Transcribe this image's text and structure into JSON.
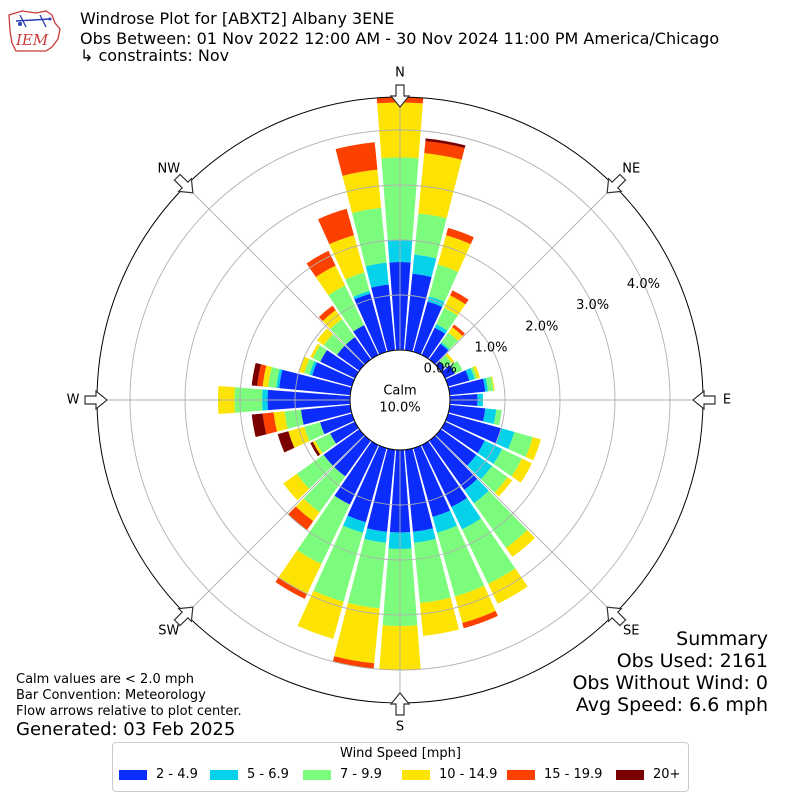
{
  "header": {
    "title": "Windrose Plot for [ABXT2] Albany 3ENE",
    "obs_between": "Obs Between: 01 Nov 2022 12:00 AM - 30 Nov 2024 11:00 PM America/Chicago",
    "constraints": "↳ constraints: Nov",
    "logo_text": "IEM"
  },
  "notes": {
    "calm_note": "Calm values are < 2.0 mph",
    "bar_convention": "Bar Convention: Meteorology",
    "flow_arrows": "Flow arrows relative to plot center.",
    "generated": "Generated: 03 Feb 2025"
  },
  "summary": {
    "heading": "Summary",
    "obs_used": "Obs Used: 2161",
    "obs_without_wind": "Obs Without Wind: 0",
    "avg_speed": "Avg Speed: 6.6 mph"
  },
  "legend": {
    "title": "Wind Speed [mph]",
    "items": [
      {
        "label": "2 - 4.9",
        "color": "#0c2cfc"
      },
      {
        "label": "5 - 6.9",
        "color": "#05d2ea"
      },
      {
        "label": "7 - 9.9",
        "color": "#7cfc7c"
      },
      {
        "label": "10 - 14.9",
        "color": "#fce303"
      },
      {
        "label": "15 - 19.9",
        "color": "#fc4000"
      },
      {
        "label": "20+",
        "color": "#7a0000"
      }
    ]
  },
  "chart_data": {
    "type": "windrose",
    "calm": {
      "label": "Calm",
      "value": "10.0%"
    },
    "radial_ticks": [
      "0.0%",
      "1.0%",
      "2.0%",
      "3.0%",
      "4.0%"
    ],
    "radial_tick_values": [
      0,
      1,
      2,
      3,
      4
    ],
    "rmax": 4.6,
    "compass_labels": [
      "N",
      "NE",
      "E",
      "SE",
      "S",
      "SW",
      "W",
      "NW"
    ],
    "compass_angles": [
      0,
      45,
      90,
      135,
      180,
      225,
      270,
      315
    ],
    "speed_bins": [
      "2 - 4.9",
      "5 - 6.9",
      "7 - 9.9",
      "10 - 14.9",
      "15 - 19.9",
      "20+"
    ],
    "directions": [
      0,
      10,
      20,
      30,
      40,
      50,
      60,
      70,
      80,
      90,
      100,
      110,
      120,
      130,
      140,
      150,
      160,
      170,
      180,
      190,
      200,
      210,
      220,
      230,
      240,
      250,
      260,
      270,
      280,
      290,
      300,
      310,
      320,
      330,
      340,
      350
    ],
    "cumulative_percent": [
      [
        1.6,
        2.0,
        3.5,
        4.5,
        4.6,
        4.6
      ],
      [
        1.4,
        1.75,
        2.5,
        3.6,
        3.82,
        3.87
      ],
      [
        0.95,
        1.05,
        1.65,
        2.2,
        2.34,
        2.34
      ],
      [
        0.55,
        0.62,
        0.95,
        1.2,
        1.3,
        1.3
      ],
      [
        0.35,
        0.38,
        0.6,
        0.72,
        0.78,
        0.78
      ],
      [
        0.1,
        0.1,
        0.25,
        0.3,
        0.3,
        0.3
      ],
      [
        0.2,
        0.2,
        0.35,
        0.35,
        0.35,
        0.35
      ],
      [
        0.4,
        0.5,
        0.55,
        0.6,
        0.6,
        0.6
      ],
      [
        0.65,
        0.7,
        0.8,
        0.82,
        0.82,
        0.82
      ],
      [
        0.5,
        0.6,
        0.6,
        0.6,
        0.6,
        0.6
      ],
      [
        0.65,
        0.85,
        0.95,
        0.95,
        0.95,
        0.95
      ],
      [
        1.0,
        1.25,
        1.6,
        1.75,
        1.75,
        1.75
      ],
      [
        0.8,
        1.15,
        1.55,
        1.75,
        1.75,
        1.75
      ],
      [
        0.8,
        1.15,
        1.5,
        1.6,
        1.6,
        1.6
      ],
      [
        1.1,
        1.4,
        2.4,
        2.6,
        2.6,
        2.6
      ],
      [
        1.25,
        1.7,
        2.8,
        3.2,
        3.2,
        3.2
      ],
      [
        1.3,
        1.6,
        2.8,
        3.3,
        3.4,
        3.4
      ],
      [
        1.5,
        1.7,
        2.8,
        3.4,
        3.4,
        3.4
      ],
      [
        1.5,
        1.8,
        3.2,
        4.0,
        4.0,
        4.0
      ],
      [
        1.5,
        1.7,
        2.9,
        3.9,
        4.0,
        4.0
      ],
      [
        1.4,
        1.6,
        2.9,
        3.6,
        3.6,
        3.6
      ],
      [
        1.2,
        1.2,
        2.4,
        3.0,
        3.1,
        3.1
      ],
      [
        0.8,
        0.8,
        1.6,
        1.8,
        2.0,
        2.0
      ],
      [
        0.8,
        0.8,
        1.4,
        1.7,
        1.7,
        1.7
      ],
      [
        0.5,
        0.5,
        0.8,
        0.85,
        0.85,
        0.9
      ],
      [
        0.6,
        0.6,
        0.9,
        1.2,
        1.2,
        1.4
      ],
      [
        0.9,
        0.9,
        1.2,
        1.4,
        1.6,
        1.8
      ],
      [
        1.5,
        1.6,
        2.1,
        2.4,
        2.4,
        2.4
      ],
      [
        1.3,
        1.35,
        1.5,
        1.6,
        1.7,
        1.8
      ],
      [
        0.75,
        0.8,
        0.9,
        1.0,
        1.0,
        1.0
      ],
      [
        0.7,
        0.7,
        0.85,
        0.9,
        0.9,
        0.9
      ],
      [
        0.5,
        0.5,
        0.8,
        0.95,
        0.95,
        0.95
      ],
      [
        0.5,
        0.5,
        0.9,
        1.1,
        1.2,
        1.2
      ],
      [
        0.6,
        0.6,
        1.4,
        1.8,
        2.1,
        2.1
      ],
      [
        1.1,
        1.15,
        1.5,
        2.2,
        2.7,
        2.7
      ],
      [
        1.2,
        1.6,
        2.6,
        3.3,
        3.8,
        3.8
      ]
    ]
  }
}
